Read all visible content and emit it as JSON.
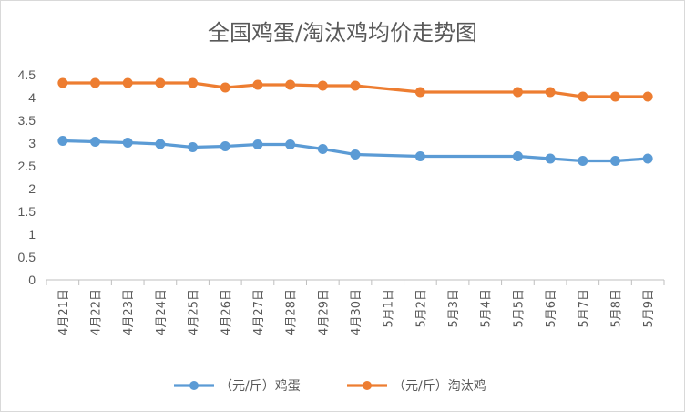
{
  "chart_data": {
    "type": "line",
    "title": "全国鸡蛋/淘汰鸡均价走势图",
    "xlabel": "",
    "ylabel": "",
    "ylim": [
      0,
      4.5
    ],
    "yticks": [
      "0",
      "0.5",
      "1",
      "1.5",
      "2",
      "2.5",
      "3",
      "3.5",
      "4",
      "4.5"
    ],
    "categories": [
      "4月21日",
      "4月22日",
      "4月23日",
      "4月24日",
      "4月25日",
      "4月26日",
      "4月27日",
      "4月28日",
      "4月29日",
      "4月30日",
      "5月1日",
      "5月2日",
      "5月3日",
      "5月4日",
      "5月5日",
      "5月6日",
      "5月7日",
      "5月8日",
      "5月9日"
    ],
    "grid": false,
    "legend_position": "bottom",
    "series": [
      {
        "name": "（元/斤）鸡蛋",
        "color": "#5b9bd5",
        "values": [
          3.05,
          3.03,
          3.01,
          2.98,
          2.91,
          2.93,
          2.97,
          2.97,
          2.87,
          2.75,
          null,
          2.71,
          null,
          null,
          2.71,
          2.66,
          2.61,
          2.61,
          2.66
        ]
      },
      {
        "name": "（元/斤）淘汰鸡",
        "color": "#ed7d31",
        "values": [
          4.32,
          4.32,
          4.32,
          4.32,
          4.32,
          4.22,
          4.28,
          4.28,
          4.26,
          4.26,
          null,
          4.12,
          null,
          null,
          4.12,
          4.12,
          4.02,
          4.02,
          4.02
        ]
      }
    ]
  }
}
